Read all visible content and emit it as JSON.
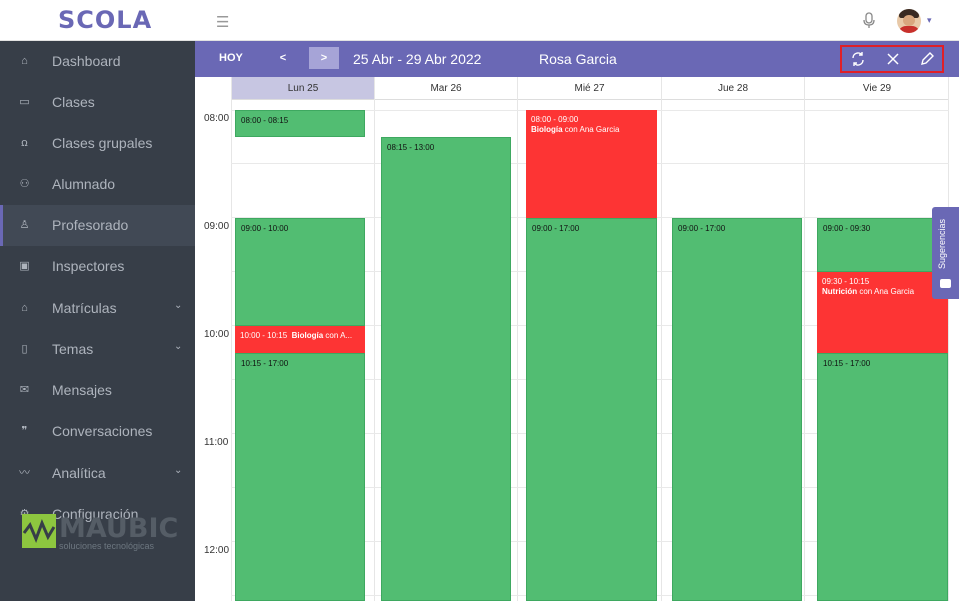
{
  "app": {
    "logo": "SCOLA"
  },
  "topbar": {
    "menu_icon": "hamburger-icon",
    "mic_icon": "microphone-icon",
    "avatar_caret": "▾"
  },
  "sidebar": {
    "items": [
      {
        "label": "Dashboard",
        "icon": "home-icon",
        "glyph": "⌂"
      },
      {
        "label": "Clases",
        "icon": "book-icon",
        "glyph": "▭"
      },
      {
        "label": "Clases grupales",
        "icon": "group-icon",
        "glyph": "ꭥ"
      },
      {
        "label": "Alumnado",
        "icon": "students-icon",
        "glyph": "⚇"
      },
      {
        "label": "Profesorado",
        "icon": "user-icon",
        "glyph": "♙",
        "active": true
      },
      {
        "label": "Inspectores",
        "icon": "badge-icon",
        "glyph": "▣"
      },
      {
        "label": "Matrículas",
        "icon": "graduation-cap-icon",
        "glyph": "⌂",
        "chevron": "⌄"
      },
      {
        "label": "Temas",
        "icon": "folder-icon",
        "glyph": "▯",
        "chevron": "⌄"
      },
      {
        "label": "Mensajes",
        "icon": "messages-icon",
        "glyph": "✉"
      },
      {
        "label": "Conversaciones",
        "icon": "quote-icon",
        "glyph": "❞"
      },
      {
        "label": "Analítica",
        "icon": "analytics-icon",
        "glyph": "〰",
        "chevron": "⌄"
      },
      {
        "label": "Configuración",
        "icon": "gear-icon",
        "glyph": "⚙"
      }
    ],
    "brand": {
      "name": "MAUBIC",
      "tagline": "soluciones tecnológicas"
    }
  },
  "calendar": {
    "today_label": "HOY",
    "prev_label": "<",
    "next_label": ">",
    "range": "25 Abr - 29 Abr 2022",
    "teacher": "Rosa Garcia",
    "tools": [
      "refresh-icon",
      "close-icon",
      "pencil-icon"
    ],
    "days": [
      "Lun 25",
      "Mar 26",
      "Mié 27",
      "Jue 28",
      "Vie 29"
    ],
    "hours": [
      "08:00",
      "09:00",
      "10:00",
      "11:00",
      "12:00"
    ],
    "events": {
      "mon_1": {
        "time": "08:00 - 08:15",
        "subject": "",
        "with": ""
      },
      "mon_2": {
        "time": "09:00 - 10:00",
        "subject": "",
        "with": ""
      },
      "mon_3": {
        "time": "10:00 - 10:15",
        "subject": "Biología",
        "with": "con A..."
      },
      "mon_4": {
        "time": "10:15 - 17:00",
        "subject": "",
        "with": ""
      },
      "tue_1": {
        "time": "08:15 - 13:00",
        "subject": "",
        "with": ""
      },
      "wed_1": {
        "time": "08:00 - 09:00",
        "subject": "Biología",
        "with": "con Ana Garcia"
      },
      "wed_2": {
        "time": "09:00 - 17:00",
        "subject": "",
        "with": ""
      },
      "thu_1": {
        "time": "09:00 - 17:00",
        "subject": "",
        "with": ""
      },
      "fri_1": {
        "time": "09:00 - 09:30",
        "subject": "",
        "with": ""
      },
      "fri_2": {
        "time": "09:30 - 10:15",
        "subject": "Nutrición",
        "with": "con Ana Garcia"
      },
      "fri_3": {
        "time": "10:15 - 17:00",
        "subject": "",
        "with": ""
      }
    },
    "suggestions_label": "Sugerencias"
  },
  "colors": {
    "accent": "#6a68b5",
    "available": "#52bd72",
    "busy": "#fd3434",
    "sidebar": "#373e48"
  }
}
